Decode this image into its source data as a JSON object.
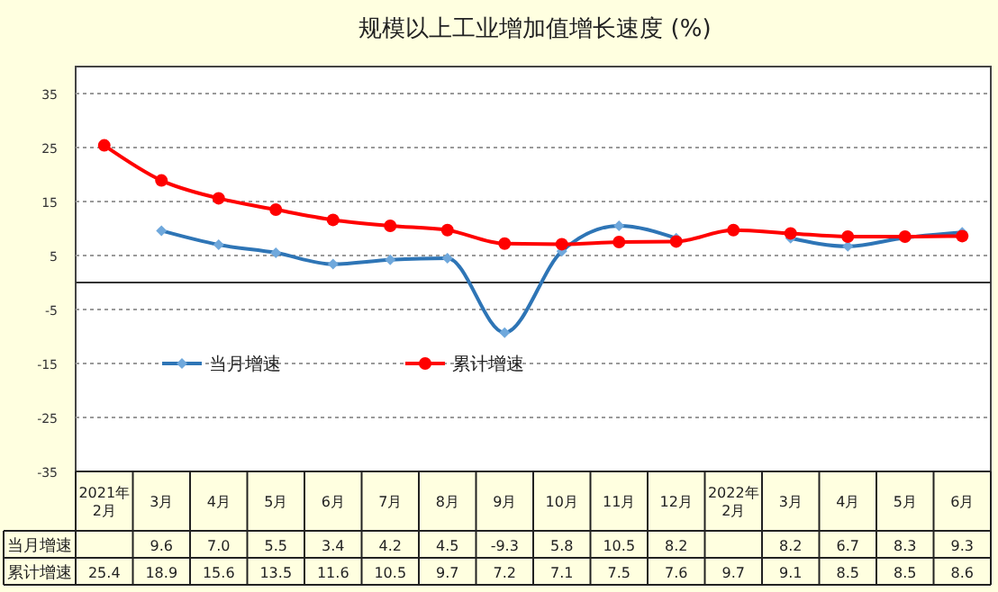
{
  "chart_data": {
    "type": "line",
    "title": "规模以上工业增加值增长速度 (%)",
    "categories": [
      "2021年\n2月",
      "3月",
      "4月",
      "5月",
      "6月",
      "7月",
      "8月",
      "9月",
      "10月",
      "11月",
      "12月",
      "2022年\n2月",
      "3月",
      "4月",
      "5月",
      "6月"
    ],
    "series": [
      {
        "name": "当月增速",
        "color": "#2e75b6",
        "marker": "diamond",
        "values": [
          null,
          9.6,
          7.0,
          5.5,
          3.4,
          4.2,
          4.5,
          -9.3,
          5.8,
          10.5,
          8.2,
          null,
          8.2,
          6.7,
          8.3,
          9.3
        ],
        "value_labels": [
          null,
          "9.6",
          "7.0",
          "5.5",
          "3.4",
          "4.2",
          "4.5",
          "-9.3",
          "5.8",
          "10.5",
          "8.2",
          null,
          "8.2",
          "6.7",
          "8.3",
          "9.3"
        ]
      },
      {
        "name": "累计增速",
        "color": "#ff0000",
        "marker": "circle",
        "values": [
          25.4,
          18.9,
          15.6,
          13.5,
          11.6,
          10.5,
          9.7,
          7.2,
          7.1,
          7.5,
          7.6,
          9.7,
          9.1,
          8.5,
          8.5,
          8.6
        ],
        "value_labels": [
          "25.4",
          "18.9",
          "15.6",
          "13.5",
          "11.6",
          "10.5",
          "9.7",
          "7.2",
          "7.1",
          "7.5",
          "7.6",
          "9.7",
          "9.1",
          "8.5",
          "8.5",
          "8.6"
        ]
      }
    ],
    "ylim": [
      -35,
      40
    ],
    "yticks": [
      -35,
      -25,
      -15,
      -5,
      5,
      15,
      25,
      35
    ],
    "grid": "y",
    "legend": "left"
  }
}
